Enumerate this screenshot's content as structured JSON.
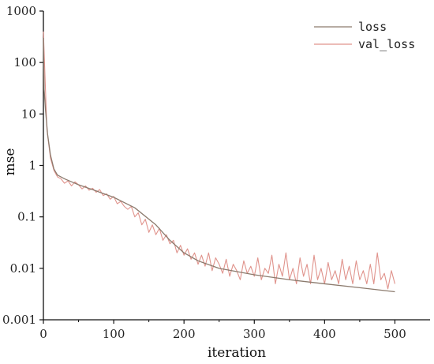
{
  "chart_data": {
    "type": "line",
    "xlabel": "iteration",
    "ylabel": "mse",
    "x_scale": "linear",
    "y_scale": "log",
    "xlim": [
      0,
      550
    ],
    "ylim": [
      0.001,
      1000
    ],
    "x_ticks": [
      0,
      100,
      200,
      300,
      400,
      500
    ],
    "x_tick_labels": [
      "0",
      "100",
      "200",
      "300",
      "400",
      "500"
    ],
    "y_ticks": [
      0.001,
      0.01,
      0.1,
      1,
      10,
      100,
      1000
    ],
    "y_tick_labels": [
      "0.001",
      "0.01",
      "0.1",
      "1",
      "10",
      "100",
      "1000"
    ],
    "grid": false,
    "legend_position": "top-right",
    "x_range": [
      0,
      500
    ],
    "series": [
      {
        "name": "loss",
        "color": "#8c7b6e",
        "x": [
          0,
          1,
          3,
          6,
          10,
          15,
          20,
          30,
          50,
          75,
          100,
          130,
          160,
          180,
          200,
          220,
          250,
          300,
          350,
          400,
          450,
          500
        ],
        "y": [
          300,
          30,
          12,
          4,
          1.6,
          0.85,
          0.65,
          0.55,
          0.42,
          0.32,
          0.24,
          0.15,
          0.07,
          0.035,
          0.02,
          0.014,
          0.01,
          0.0075,
          0.006,
          0.005,
          0.0042,
          0.0035
        ]
      },
      {
        "name": "val_loss",
        "color": "#e0938c",
        "x": [
          0,
          5,
          10,
          15,
          20,
          25,
          30,
          35,
          40,
          45,
          50,
          55,
          60,
          65,
          70,
          75,
          80,
          85,
          90,
          95,
          100,
          105,
          110,
          115,
          120,
          125,
          130,
          135,
          140,
          145,
          150,
          155,
          160,
          165,
          170,
          175,
          180,
          185,
          190,
          195,
          200,
          205,
          210,
          215,
          220,
          225,
          230,
          235,
          240,
          245,
          250,
          255,
          260,
          265,
          270,
          275,
          280,
          285,
          290,
          295,
          300,
          305,
          310,
          315,
          320,
          325,
          330,
          335,
          340,
          345,
          350,
          355,
          360,
          365,
          370,
          375,
          380,
          385,
          390,
          395,
          400,
          405,
          410,
          415,
          420,
          425,
          430,
          435,
          440,
          445,
          450,
          455,
          460,
          465,
          470,
          475,
          480,
          485,
          490,
          495,
          500
        ],
        "y": [
          400,
          5,
          1.4,
          0.8,
          0.6,
          0.55,
          0.45,
          0.5,
          0.4,
          0.48,
          0.42,
          0.35,
          0.4,
          0.33,
          0.36,
          0.3,
          0.34,
          0.26,
          0.28,
          0.22,
          0.25,
          0.18,
          0.2,
          0.16,
          0.14,
          0.16,
          0.1,
          0.12,
          0.07,
          0.09,
          0.05,
          0.07,
          0.045,
          0.06,
          0.035,
          0.045,
          0.03,
          0.035,
          0.02,
          0.028,
          0.018,
          0.024,
          0.015,
          0.02,
          0.012,
          0.018,
          0.011,
          0.02,
          0.009,
          0.016,
          0.012,
          0.008,
          0.015,
          0.007,
          0.012,
          0.009,
          0.006,
          0.014,
          0.008,
          0.011,
          0.007,
          0.016,
          0.006,
          0.01,
          0.008,
          0.018,
          0.005,
          0.012,
          0.007,
          0.02,
          0.006,
          0.01,
          0.005,
          0.016,
          0.007,
          0.012,
          0.005,
          0.018,
          0.006,
          0.01,
          0.005,
          0.013,
          0.006,
          0.009,
          0.005,
          0.015,
          0.006,
          0.011,
          0.005,
          0.014,
          0.006,
          0.009,
          0.005,
          0.012,
          0.005,
          0.02,
          0.006,
          0.008,
          0.004,
          0.009,
          0.005
        ]
      }
    ]
  }
}
